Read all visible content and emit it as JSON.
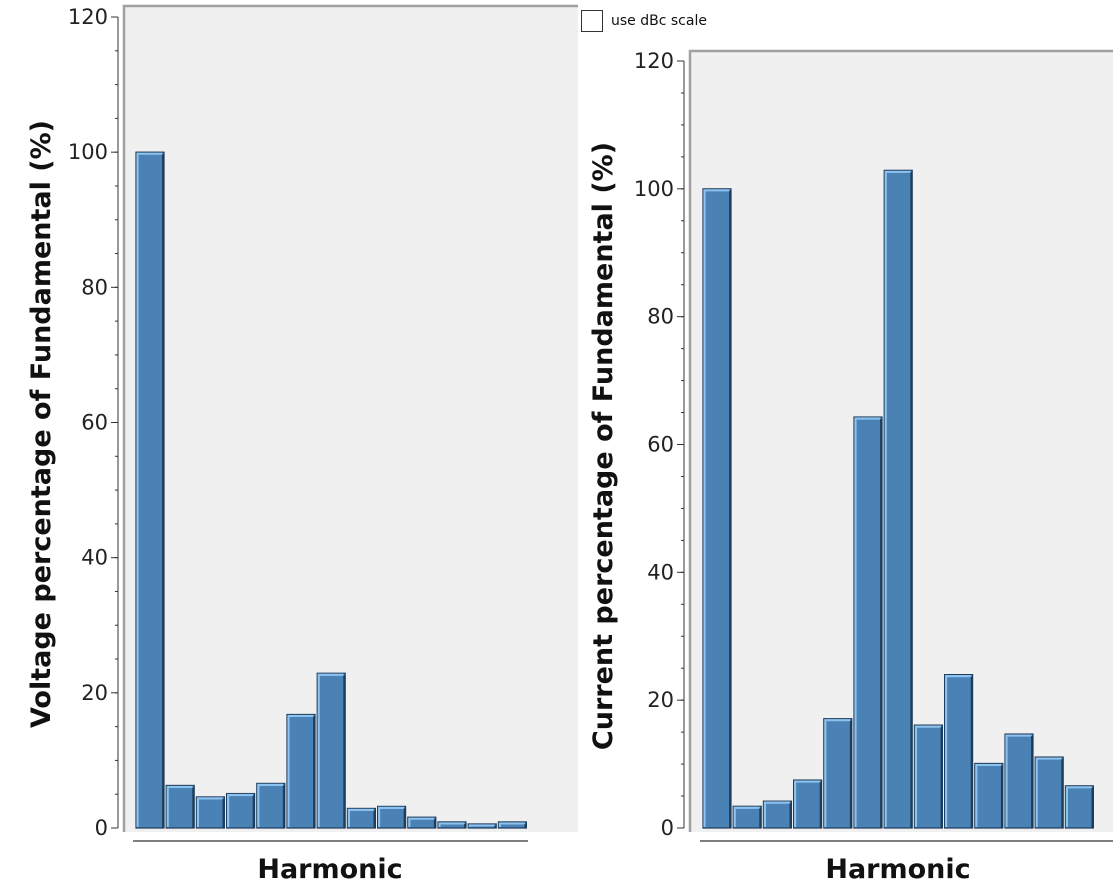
{
  "options": {
    "dbc_scale": {
      "label": "use dBc scale",
      "checked": false
    }
  },
  "colors": {
    "plot_bg": "#f0f0f0",
    "bar_fill": "#4a82b6",
    "bar_highlight": "#8ec2ee",
    "bar_shadow": "#1d3d5c",
    "frame": "#a0a0a0",
    "axis": "#333333"
  },
  "chart_data": [
    {
      "type": "bar",
      "title": "",
      "xlabel": "Harmonic",
      "ylabel": "Voltage percentage of Fundamental (%)",
      "ylim": [
        0,
        120
      ],
      "yticks": [
        0,
        20,
        40,
        60,
        80,
        100,
        120
      ],
      "y_minor_step": 5,
      "xticks_shown": false,
      "grid": false,
      "values": [
        100,
        6.3,
        4.6,
        5.1,
        6.6,
        16.8,
        22.9,
        2.9,
        3.2,
        1.6,
        0.9,
        0.6,
        0.9
      ]
    },
    {
      "type": "bar",
      "title": "",
      "xlabel": "Harmonic",
      "ylabel": "Current percentage of Fundamental (%)",
      "ylim": [
        0,
        120
      ],
      "yticks": [
        0,
        20,
        40,
        60,
        80,
        100,
        120
      ],
      "y_minor_step": 5,
      "xticks_shown": false,
      "grid": false,
      "values": [
        100,
        3.4,
        4.2,
        7.5,
        17.1,
        64.3,
        102.9,
        16.1,
        24.0,
        10.1,
        14.7,
        11.1,
        6.6
      ]
    }
  ]
}
